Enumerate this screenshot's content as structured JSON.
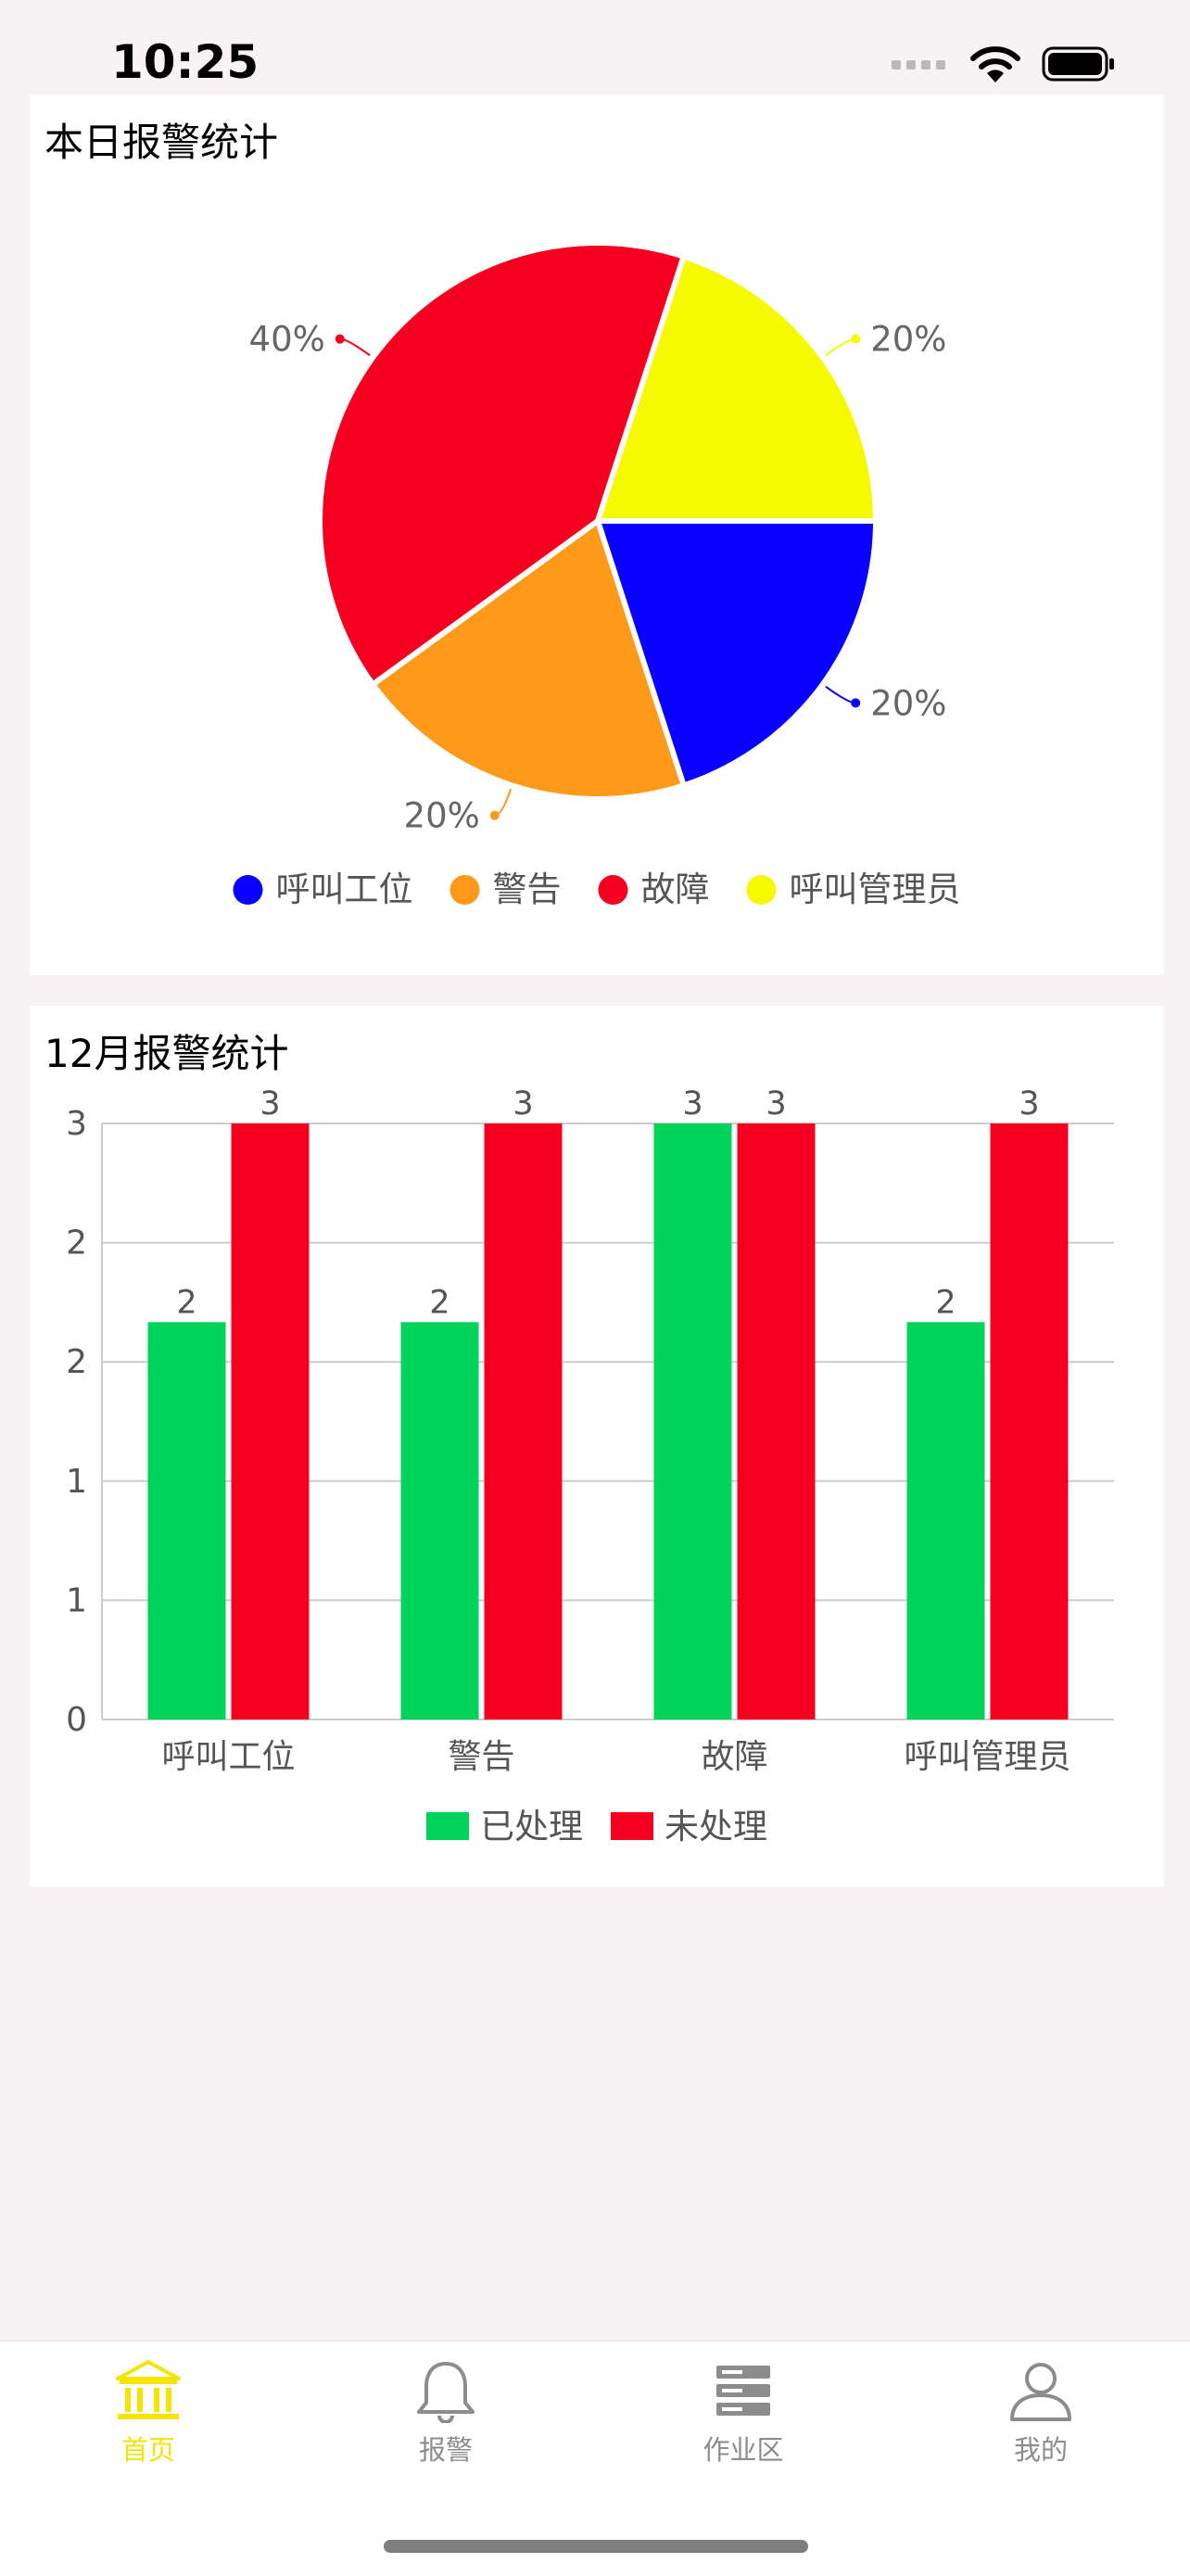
{
  "status_bar": {
    "time": "10:25"
  },
  "pie_card": {
    "title": "本日报警统计"
  },
  "bar_card": {
    "title": "12月报警统计"
  },
  "chart_data": [
    {
      "type": "pie",
      "title": "本日报警统计",
      "categories": [
        "呼叫工位",
        "警告",
        "故障",
        "呼叫管理员"
      ],
      "values": [
        20,
        20,
        40,
        20
      ],
      "value_labels": [
        "20%",
        "20%",
        "40%",
        "20%"
      ],
      "colors": [
        "#0a00ff",
        "#ff991a",
        "#f5001e",
        "#f5fa00"
      ],
      "legend": "bottom"
    },
    {
      "type": "bar",
      "title": "12月报警统计",
      "categories": [
        "呼叫工位",
        "警告",
        "故障",
        "呼叫管理员"
      ],
      "series": [
        {
          "name": "已处理",
          "values": [
            2,
            2,
            3,
            2
          ],
          "value_labels": [
            "2",
            "2",
            "3",
            "2"
          ],
          "color": "#00d35a"
        },
        {
          "name": "未处理",
          "values": [
            3,
            3,
            3,
            3
          ],
          "value_labels": [
            "3",
            "3",
            "3",
            "3"
          ],
          "color": "#f5001e"
        }
      ],
      "ylim": [
        0,
        3
      ],
      "y_tick_labels": [
        "0",
        "1",
        "1",
        "2",
        "2",
        "3"
      ],
      "grid": true,
      "legend": "bottom"
    }
  ],
  "tabbar": {
    "tabs": [
      {
        "label": "首页",
        "icon": "bank-icon",
        "active": true
      },
      {
        "label": "报警",
        "icon": "bell-icon",
        "active": false
      },
      {
        "label": "作业区",
        "icon": "server-icon",
        "active": false
      },
      {
        "label": "我的",
        "icon": "user-icon",
        "active": false
      }
    ],
    "active_color": "#f5e400",
    "inactive_color": "#8c8c8c"
  }
}
